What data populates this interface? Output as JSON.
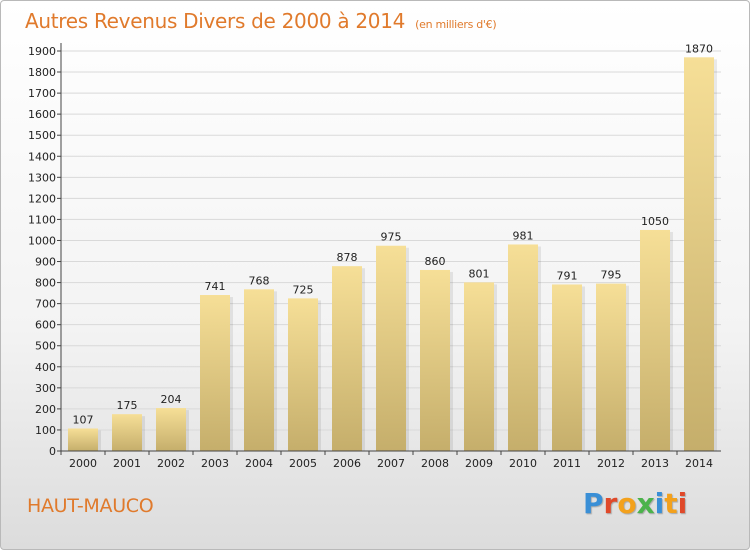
{
  "title": "Autres Revenus Divers de 2000 à 2014",
  "subtitle": "(en milliers d'€)",
  "commune": "HAUT-MAUCO",
  "logo": {
    "text": "Proxiti",
    "letter_colors": [
      "#3a8fd6",
      "#e0492a",
      "#f3a11c",
      "#4bb34b",
      "#3a8fd6",
      "#f3a11c",
      "#e0492a"
    ]
  },
  "colors": {
    "title": "#e07a2c",
    "bar_top": "#f6df97",
    "bar_bottom": "#c5ae6b",
    "grid": "#d9d9d9",
    "axis_text": "#222222"
  },
  "chart_data": {
    "type": "bar",
    "title": "Autres Revenus Divers de 2000 à 2014",
    "subtitle": "(en milliers d'€)",
    "categories": [
      "2000",
      "2001",
      "2002",
      "2003",
      "2004",
      "2005",
      "2006",
      "2007",
      "2008",
      "2009",
      "2010",
      "2011",
      "2012",
      "2013",
      "2014"
    ],
    "values": [
      107,
      175,
      204,
      741,
      768,
      725,
      878,
      975,
      860,
      801,
      981,
      791,
      795,
      1050,
      1870
    ],
    "ylim": [
      0,
      1900
    ],
    "yticks": [
      0,
      100,
      200,
      300,
      400,
      500,
      600,
      700,
      800,
      900,
      1000,
      1100,
      1200,
      1300,
      1400,
      1500,
      1600,
      1700,
      1800,
      1900
    ],
    "grid": true,
    "xlabel": "",
    "ylabel": ""
  }
}
